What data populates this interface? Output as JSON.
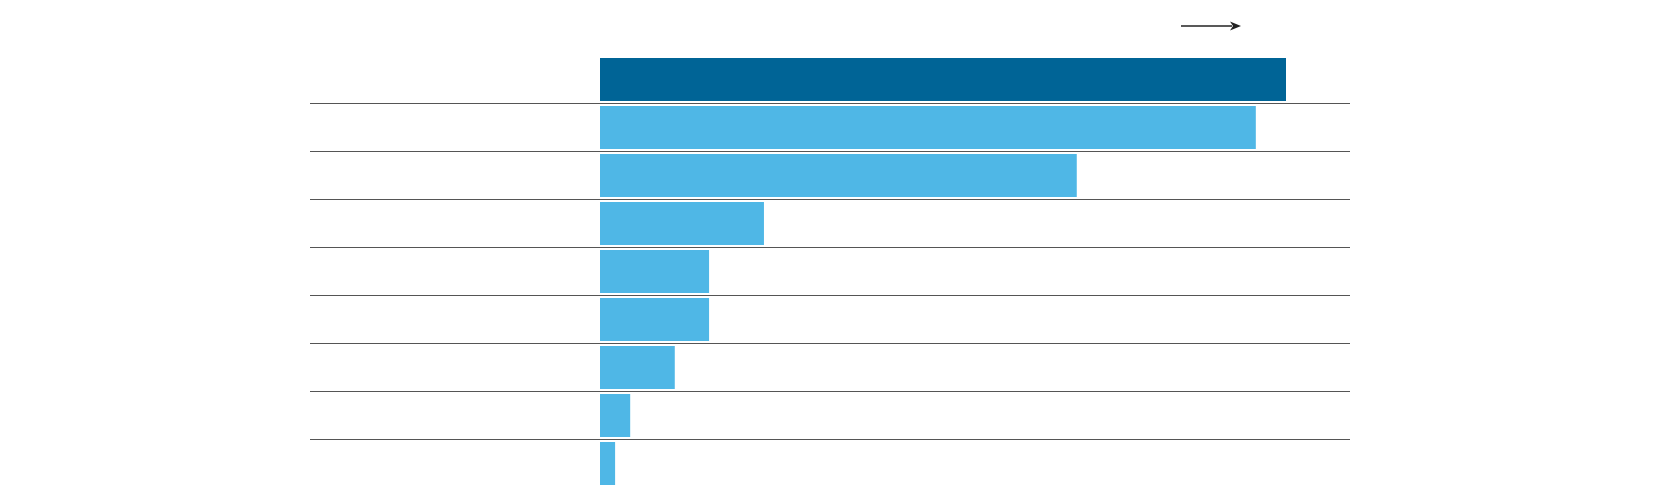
{
  "chart_data": {
    "type": "bar",
    "orientation": "horizontal",
    "categories": [
      "",
      "",
      "",
      "",
      "",
      "",
      "",
      "",
      ""
    ],
    "values": [
      100,
      95.6,
      69.5,
      23.9,
      15.9,
      15.9,
      10.9,
      4.4,
      2.2
    ],
    "xlim": [
      0,
      100
    ],
    "title": "",
    "xlabel": "",
    "ylabel": "",
    "grid": false,
    "legend": "none",
    "colors": {
      "highlight": "#006496",
      "bar": "#4fb7e6",
      "separator": "#555555",
      "arrow": "#222222"
    },
    "highlight_index": 0,
    "annotation_arrow": "right-arrow-icon"
  }
}
